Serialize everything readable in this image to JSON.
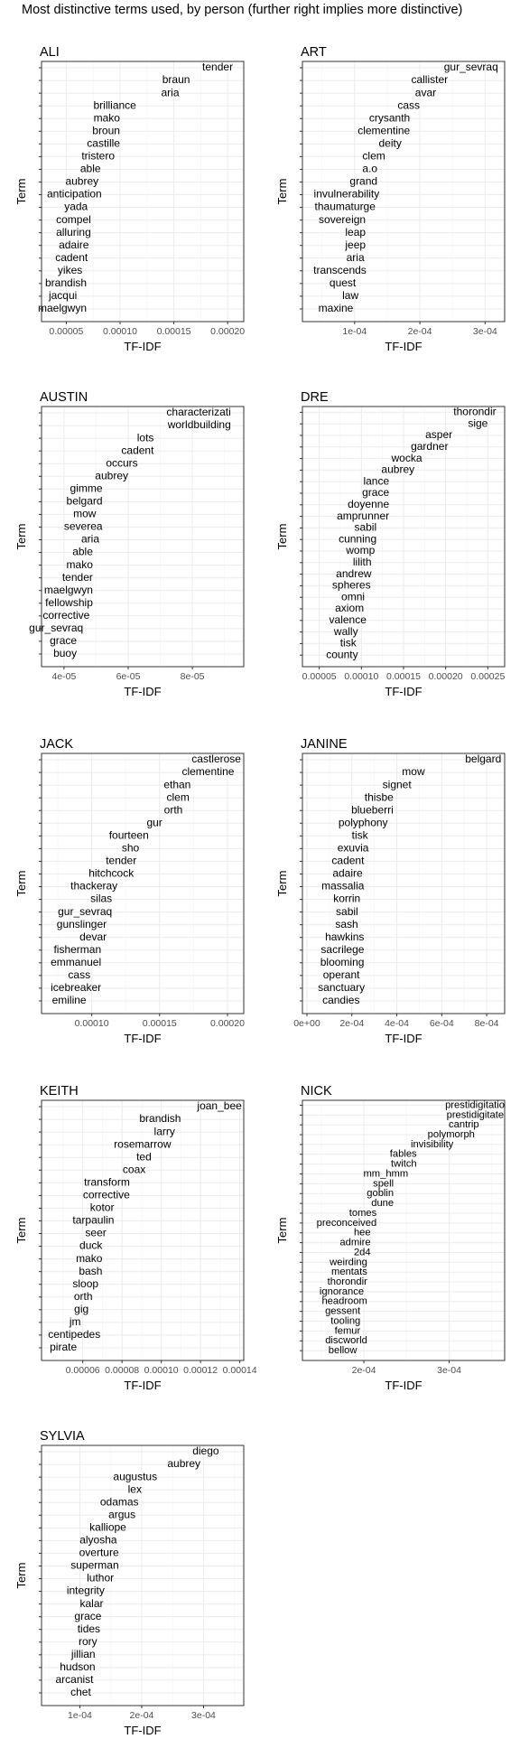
{
  "title": "Most distinctive terms used, by person (further right implies more distinctive)",
  "colors": {
    "background": "#ffffff",
    "panel_border": "#333333",
    "grid_major": "#ebebeb",
    "grid_minor": "#f6f6f6",
    "axis_text": "#4d4d4d",
    "text": "#000000"
  },
  "chart_data": [
    {
      "type": "bar",
      "panel": "ALI",
      "xlabel": "TF-IDF",
      "ylabel": "Term",
      "xlim": [
        2.7e-05,
        0.000215
      ],
      "x_ticks": [
        5e-05,
        0.0001,
        0.00015,
        0.0002
      ],
      "x_tick_labels": [
        "0.00005",
        "0.00010",
        "0.00015",
        "0.00020"
      ],
      "terms": [
        "tender",
        "braun",
        "aria",
        "brilliance",
        "mako",
        "broun",
        "castille",
        "tristero",
        "able",
        "aubrey",
        "anticipation",
        "yada",
        "compel",
        "alluring",
        "adaire",
        "cadent",
        "yikes",
        "brandish",
        "jacqui",
        "maelgwyn"
      ],
      "values": [
        0.000205,
        0.000165,
        0.000155,
        0.000115,
        0.0001,
        0.0001,
        0.0001,
        9.5e-05,
        8.2e-05,
        8e-05,
        8.3e-05,
        7e-05,
        7.3e-05,
        7.3e-05,
        7.1e-05,
        7e-05,
        6.5e-05,
        6.9e-05,
        6e-05,
        6.9e-05
      ]
    },
    {
      "type": "bar",
      "panel": "ART",
      "xlabel": "TF-IDF",
      "ylabel": "Term",
      "xlim": [
        2e-05,
        0.00033
      ],
      "x_ticks": [
        0.0001,
        0.0002,
        0.0003
      ],
      "x_tick_labels": [
        "1e-04",
        "2e-04",
        "3e-04"
      ],
      "terms": [
        "gur_sevraq",
        "callister",
        "avar",
        "cass",
        "crysanth",
        "clementine",
        "deity",
        "clem",
        "a.o",
        "grand",
        "invulnerability",
        "thaumaturge",
        "sovereign",
        "leap",
        "jeep",
        "aria",
        "transcends",
        "quest",
        "law",
        "maxine"
      ],
      "values": [
        0.00032,
        0.000243,
        0.000225,
        0.0002,
        0.000185,
        0.000185,
        0.000172,
        0.000147,
        0.000135,
        0.000135,
        0.000138,
        0.000132,
        0.000117,
        0.000117,
        0.000117,
        0.000115,
        0.000118,
        0.000102,
        0.000106,
        9.8e-05
      ]
    },
    {
      "type": "bar",
      "panel": "AUSTIN",
      "xlabel": "TF-IDF",
      "ylabel": "Term",
      "xlim": [
        3.3e-05,
        9.6e-05
      ],
      "x_ticks": [
        4e-05,
        6e-05,
        8e-05
      ],
      "x_tick_labels": [
        "4e-05",
        "6e-05",
        "8e-05"
      ],
      "terms": [
        "characterizati",
        "worldbuilding",
        "lots",
        "cadent",
        "occurs",
        "aubrey",
        "gimme",
        "belgard",
        "mow",
        "severea",
        "aria",
        "able",
        "mako",
        "tender",
        "maelgwyn",
        "fellowship",
        "corrective",
        "gur_sevraq",
        "grace",
        "buoy"
      ],
      "values": [
        9.2e-05,
        9.2e-05,
        6.8e-05,
        6.8e-05,
        6.3e-05,
        6e-05,
        5.2e-05,
        5.2e-05,
        5e-05,
        5.2e-05,
        5.1e-05,
        4.9e-05,
        4.9e-05,
        4.9e-05,
        4.9e-05,
        4.9e-05,
        4.8e-05,
        4.6e-05,
        4.4e-05,
        4.4e-05
      ]
    },
    {
      "type": "bar",
      "panel": "DRE",
      "xlabel": "TF-IDF",
      "ylabel": "Term",
      "xlim": [
        3e-05,
        0.00027
      ],
      "x_ticks": [
        5e-05,
        0.0001,
        0.00015,
        0.0002,
        0.00025
      ],
      "x_tick_labels": [
        "0.00005",
        "0.00010",
        "0.00015",
        "0.00020",
        "0.00025"
      ],
      "terms": [
        "thorondir",
        "sige",
        "asper",
        "gardner",
        "wocka",
        "aubrey",
        "lance",
        "grace",
        "doyenne",
        "amprunner",
        "sabil",
        "cunning",
        "womp",
        "lilith",
        "andrew",
        "spheres",
        "omni",
        "axiom",
        "valence",
        "wally",
        "tisk",
        "county"
      ],
      "values": [
        0.00026,
        0.00025,
        0.000208,
        0.000203,
        0.000172,
        0.000163,
        0.000133,
        0.000133,
        0.000133,
        0.000133,
        0.000118,
        0.000118,
        0.000116,
        0.000112,
        0.000112,
        0.000111,
        0.000104,
        0.000103,
        0.000106,
        9.6e-05,
        9.4e-05,
        9.6e-05
      ]
    },
    {
      "type": "bar",
      "panel": "JACK",
      "xlabel": "TF-IDF",
      "ylabel": "Term",
      "xlim": [
        6.3e-05,
        0.000212
      ],
      "x_ticks": [
        0.0001,
        0.00015,
        0.0002
      ],
      "x_tick_labels": [
        "0.00010",
        "0.00015",
        "0.00020"
      ],
      "terms": [
        "castlerose",
        "clementine",
        "ethan",
        "clem",
        "orth",
        "gur",
        "fourteen",
        "sho",
        "tender",
        "hitchcock",
        "thackeray",
        "silas",
        "gur_sevraq",
        "gunslinger",
        "devar",
        "fisherman",
        "emmanuel",
        "cass",
        "icebreaker",
        "emiline"
      ],
      "values": [
        0.00021,
        0.000205,
        0.000173,
        0.000172,
        0.000167,
        0.000152,
        0.000142,
        0.000135,
        0.000133,
        0.000131,
        0.000119,
        0.000115,
        0.000115,
        0.000111,
        0.000111,
        0.000107,
        0.000107,
        9.9e-05,
        0.000107,
        9.6e-05
      ]
    },
    {
      "type": "bar",
      "panel": "JANINE",
      "xlabel": "TF-IDF",
      "ylabel": "Term",
      "xlim": [
        -2e-05,
        0.00088
      ],
      "x_ticks": [
        0,
        0.0002,
        0.0004,
        0.0006,
        0.0008
      ],
      "x_tick_labels": [
        "0e+00",
        "2e-04",
        "4e-04",
        "6e-04",
        "8e-04"
      ],
      "terms": [
        "belgard",
        "mow",
        "signet",
        "thisbe",
        "blueberri",
        "polyphony",
        "tisk",
        "exuvia",
        "cadent",
        "adaire",
        "massalia",
        "korrin",
        "sabil",
        "sash",
        "hawkins",
        "sacrilege",
        "blooming",
        "operant",
        "sanctuary",
        "candies"
      ],
      "values": [
        0.000865,
        0.000525,
        0.000465,
        0.000385,
        0.000385,
        0.00036,
        0.000272,
        0.000275,
        0.000255,
        0.000248,
        0.000255,
        0.000238,
        0.000228,
        0.000228,
        0.000255,
        0.000255,
        0.000255,
        0.000235,
        0.000258,
        0.000235
      ]
    },
    {
      "type": "bar",
      "panel": "KEITH",
      "xlabel": "TF-IDF",
      "ylabel": "Term",
      "xlim": [
        3.9e-05,
        0.000142
      ],
      "x_ticks": [
        6e-05,
        8e-05,
        0.0001,
        0.00012,
        0.00014
      ],
      "x_tick_labels": [
        "0.00006",
        "0.00008",
        "0.00010",
        "0.00012",
        "0.00014"
      ],
      "terms": [
        "joan_bee",
        "brandish",
        "larry",
        "rosemarrow",
        "ted",
        "coax",
        "transform",
        "corrective",
        "kotor",
        "tarpaulin",
        "seer",
        "duck",
        "mako",
        "bash",
        "sloop",
        "orth",
        "gig",
        "jm",
        "centipedes",
        "pirate"
      ],
      "values": [
        0.000141,
        0.00011,
        0.000107,
        0.000105,
        9.5e-05,
        9.2e-05,
        8.4e-05,
        8.4e-05,
        7.6e-05,
        7.6e-05,
        7.2e-05,
        7e-05,
        7e-05,
        7e-05,
        6.8e-05,
        6.5e-05,
        6.3e-05,
        5.9e-05,
        6.9e-05,
        5.7e-05
      ]
    },
    {
      "type": "bar",
      "panel": "NICK",
      "xlabel": "TF-IDF",
      "ylabel": "Term",
      "xlim": [
        0.000128,
        0.000365
      ],
      "x_ticks": [
        0.0002,
        0.0003
      ],
      "x_tick_labels": [
        "2e-04",
        "3e-04"
      ],
      "terms": [
        "prestidigitatio",
        "prestidigitate",
        "cantrip",
        "polymorph",
        "invisibility",
        "fables",
        "twitch",
        "mm_hmm",
        "spell",
        "goblin",
        "dune",
        "tomes",
        "preconceived",
        "hee",
        "admire",
        "2d4",
        "weirding",
        "mentats",
        "thorondir",
        "ignorance",
        "headroom",
        "gessent",
        "tooling",
        "femur",
        "discworld",
        "bellow"
      ],
      "values": [
        0.000365,
        0.000364,
        0.000335,
        0.00033,
        0.000305,
        0.000262,
        0.000262,
        0.000252,
        0.000235,
        0.000235,
        0.000235,
        0.000215,
        0.000215,
        0.000208,
        0.000208,
        0.000208,
        0.000204,
        0.000204,
        0.000204,
        0.0002,
        0.000204,
        0.000196,
        0.000196,
        0.000196,
        0.000204,
        0.000192
      ]
    },
    {
      "type": "bar",
      "panel": "SYLVIA",
      "xlabel": "TF-IDF",
      "ylabel": "Term",
      "xlim": [
        3.8e-05,
        0.000365
      ],
      "x_ticks": [
        0.0001,
        0.0002,
        0.0003
      ],
      "x_tick_labels": [
        "1e-04",
        "2e-04",
        "3e-04"
      ],
      "terms": [
        "diego",
        "aubrey",
        "augustus",
        "lex",
        "odamas",
        "argus",
        "kalliope",
        "alyosha",
        "overture",
        "superman",
        "luthor",
        "integrity",
        "kalar",
        "grace",
        "tides",
        "rory",
        "jillian",
        "hudson",
        "arcanist",
        "chet"
      ],
      "values": [
        0.000325,
        0.000295,
        0.000225,
        0.0002,
        0.000195,
        0.00019,
        0.000175,
        0.00016,
        0.000163,
        0.000163,
        0.000155,
        0.00014,
        0.000138,
        0.000135,
        0.000133,
        0.000128,
        0.000125,
        0.000125,
        0.000122,
        0.000118
      ]
    }
  ]
}
